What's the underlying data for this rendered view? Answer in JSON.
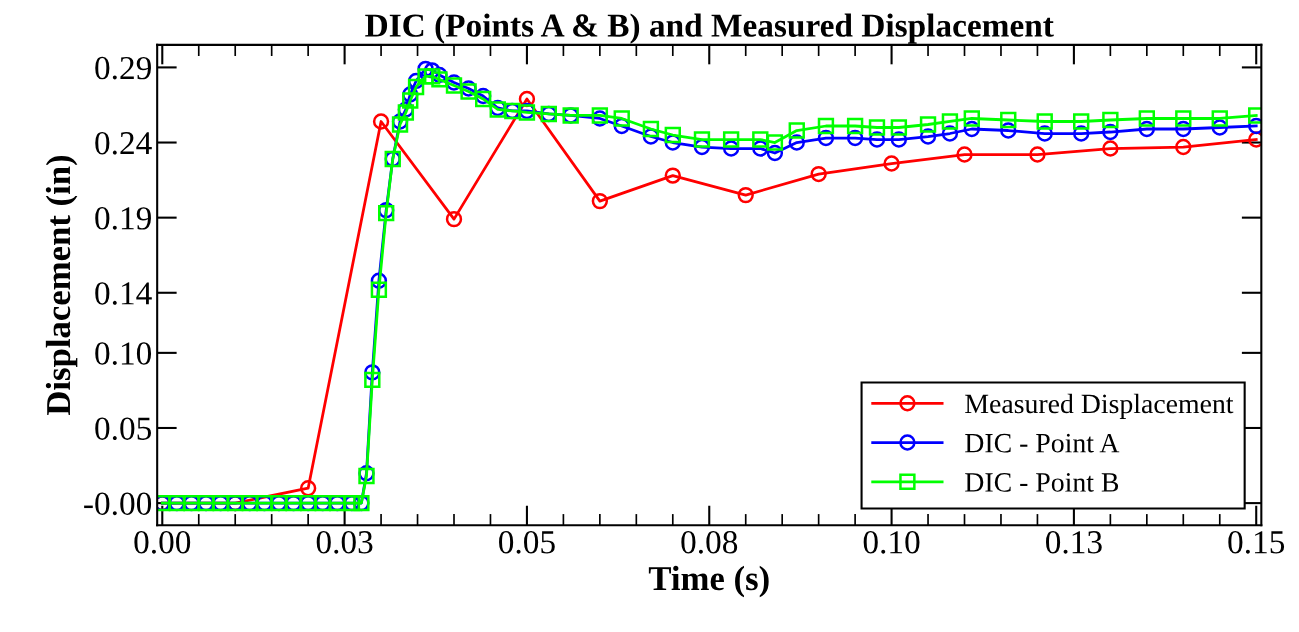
{
  "chart_data": {
    "type": "line",
    "title": "DIC (Points A & B) and Measured Displacement",
    "xlabel": "Time (s)",
    "ylabel": "Displacement (in)",
    "xlim": [
      -0.0007,
      0.1507
    ],
    "ylim": [
      -0.0147,
      0.305
    ],
    "xticks": [
      {
        "value": 0,
        "label": "0.00"
      },
      {
        "value": 0.025,
        "label": "0.03"
      },
      {
        "value": 0.05,
        "label": "0.05"
      },
      {
        "value": 0.075,
        "label": "0.08"
      },
      {
        "value": 0.1,
        "label": "0.10"
      },
      {
        "value": 0.125,
        "label": "0.13"
      },
      {
        "value": 0.15,
        "label": "0.15"
      }
    ],
    "yticks": [
      {
        "value": 0,
        "label": "-0.00"
      },
      0.05,
      {
        "value": 0.1,
        "label": "0.10"
      },
      0.14,
      0.19,
      0.24,
      0.29
    ],
    "grid": false,
    "legend": "bottom right",
    "line_style": "solid",
    "series": [
      {
        "name": "Measured Displacement",
        "color": "#ff0000",
        "marker": "circle",
        "x": [
          0,
          0.01,
          0.02,
          0.03,
          0.04,
          0.05,
          0.06,
          0.07,
          0.08,
          0.09,
          0.1,
          0.11,
          0.12,
          0.13,
          0.14,
          0.15
        ],
        "values": [
          0,
          0,
          0.0099,
          0.254,
          0.189,
          0.269,
          0.201,
          0.218,
          0.205,
          0.219,
          0.226,
          0.232,
          0.232,
          0.236,
          0.237,
          0.242
        ]
      },
      {
        "name": "DIC - Point A",
        "color": "#0000ff",
        "marker": "circle",
        "x": [
          0,
          0.002,
          0.004,
          0.006,
          0.008,
          0.01,
          0.012,
          0.014,
          0.016,
          0.018,
          0.02,
          0.022,
          0.024,
          0.026,
          0.0273,
          0.028,
          0.0288,
          0.0297,
          0.0307,
          0.0316,
          0.0326,
          0.0334,
          0.034,
          0.0348,
          0.0361,
          0.037,
          0.038,
          0.04,
          0.042,
          0.044,
          0.046,
          0.048,
          0.05,
          0.053,
          0.056,
          0.06,
          0.063,
          0.067,
          0.07,
          0.074,
          0.078,
          0.082,
          0.084,
          0.087,
          0.091,
          0.095,
          0.098,
          0.101,
          0.105,
          0.108,
          0.111,
          0.116,
          0.121,
          0.126,
          0.13,
          0.135,
          0.14,
          0.145,
          0.15
        ],
        "values": [
          0,
          0,
          0,
          0,
          0,
          0,
          0,
          0,
          0,
          0,
          0,
          0,
          0,
          0,
          0,
          0.0199,
          0.087,
          0.148,
          0.195,
          0.229,
          0.254,
          0.262,
          0.272,
          0.281,
          0.289,
          0.288,
          0.285,
          0.28,
          0.276,
          0.271,
          0.263,
          0.261,
          0.261,
          0.259,
          0.258,
          0.256,
          0.251,
          0.244,
          0.24,
          0.237,
          0.236,
          0.236,
          0.233,
          0.24,
          0.243,
          0.243,
          0.242,
          0.242,
          0.244,
          0.246,
          0.249,
          0.248,
          0.246,
          0.246,
          0.247,
          0.249,
          0.249,
          0.25,
          0.251
        ]
      },
      {
        "name": "DIC - Point B",
        "color": "#00ff00",
        "marker": "square",
        "x": [
          0,
          0.002,
          0.004,
          0.006,
          0.008,
          0.01,
          0.012,
          0.014,
          0.016,
          0.018,
          0.02,
          0.022,
          0.024,
          0.026,
          0.0273,
          0.028,
          0.0288,
          0.0297,
          0.0307,
          0.0316,
          0.0326,
          0.0334,
          0.034,
          0.0348,
          0.0361,
          0.037,
          0.038,
          0.04,
          0.042,
          0.044,
          0.046,
          0.048,
          0.05,
          0.053,
          0.056,
          0.06,
          0.063,
          0.067,
          0.07,
          0.074,
          0.078,
          0.082,
          0.084,
          0.087,
          0.091,
          0.095,
          0.098,
          0.101,
          0.105,
          0.108,
          0.111,
          0.116,
          0.121,
          0.126,
          0.13,
          0.135,
          0.14,
          0.145,
          0.15
        ],
        "values": [
          0,
          0,
          0,
          0,
          0,
          0,
          0,
          0,
          0,
          0,
          0,
          0,
          0,
          0,
          0,
          0.018,
          0.082,
          0.142,
          0.193,
          0.229,
          0.252,
          0.26,
          0.268,
          0.277,
          0.284,
          0.284,
          0.282,
          0.278,
          0.274,
          0.269,
          0.262,
          0.261,
          0.26,
          0.259,
          0.258,
          0.258,
          0.256,
          0.249,
          0.245,
          0.242,
          0.242,
          0.242,
          0.24,
          0.248,
          0.251,
          0.251,
          0.25,
          0.25,
          0.252,
          0.254,
          0.256,
          0.255,
          0.254,
          0.254,
          0.255,
          0.256,
          0.256,
          0.256,
          0.258
        ]
      }
    ]
  }
}
